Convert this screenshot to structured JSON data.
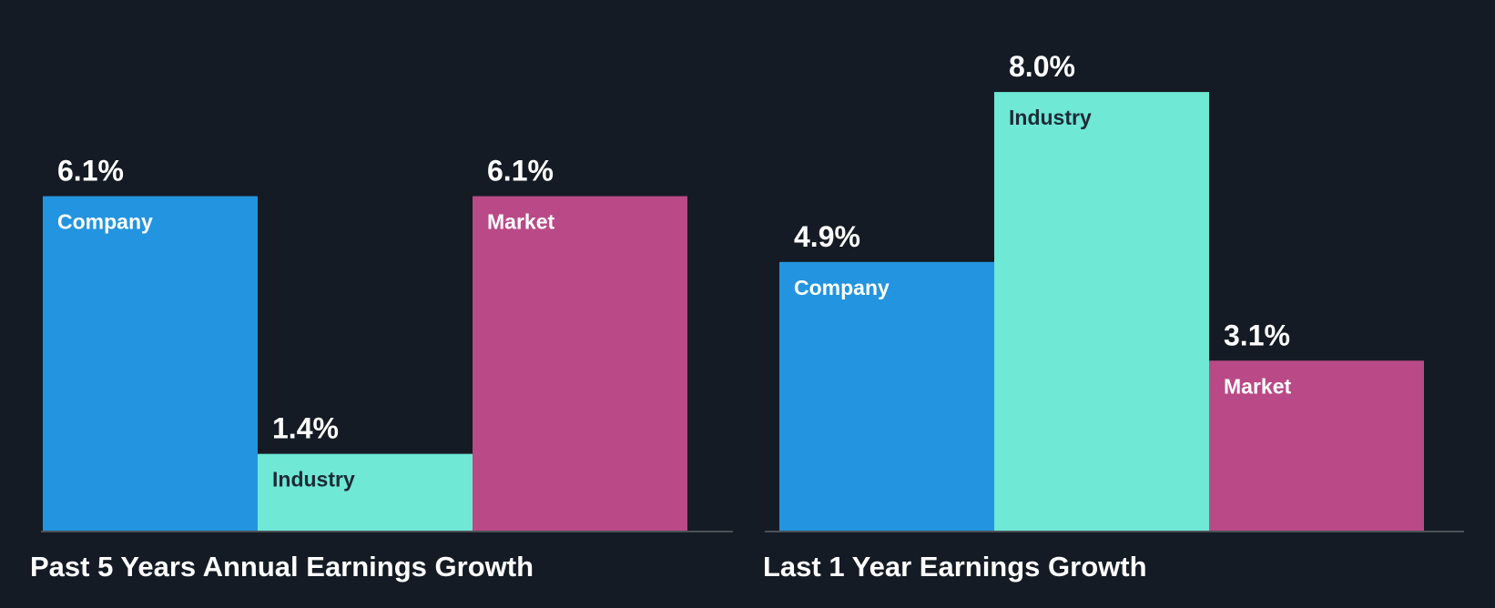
{
  "chart_data": [
    {
      "type": "bar",
      "title": "Past 5 Years Annual Earnings Growth",
      "categories": [
        "Company",
        "Industry",
        "Market"
      ],
      "values": [
        6.1,
        1.4,
        6.1
      ],
      "value_labels": [
        "6.1%",
        "1.4%",
        "6.1%"
      ],
      "unit": "%",
      "colors": [
        "#2394df",
        "#6fe8d6",
        "#b94a87"
      ],
      "label_colors": [
        "#ffffff",
        "#1e2a36",
        "#ffffff"
      ],
      "ylim": [
        0,
        8.3
      ],
      "xlabel": "",
      "ylabel": "",
      "grid": false,
      "legend": "none"
    },
    {
      "type": "bar",
      "title": "Last 1 Year Earnings Growth",
      "categories": [
        "Company",
        "Industry",
        "Market"
      ],
      "values": [
        4.9,
        8.0,
        3.1
      ],
      "value_labels": [
        "4.9%",
        "8.0%",
        "3.1%"
      ],
      "unit": "%",
      "colors": [
        "#2394df",
        "#6fe8d6",
        "#b94a87"
      ],
      "label_colors": [
        "#ffffff",
        "#1e2a36",
        "#ffffff"
      ],
      "ylim": [
        0,
        8.3
      ],
      "xlabel": "",
      "ylabel": "",
      "grid": false,
      "legend": "none"
    }
  ],
  "theme": {
    "background": "#151b24",
    "text": "#ffffff",
    "axis": "#4c5158"
  }
}
